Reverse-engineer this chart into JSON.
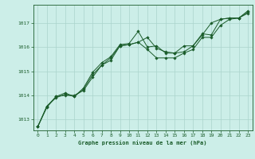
{
  "xlabel": "Graphe pression niveau de la mer (hPa)",
  "bg_color": "#cceee8",
  "line_color": "#1a5c2a",
  "grid_color": "#aad4cc",
  "xlim": [
    -0.5,
    23.5
  ],
  "ylim": [
    1012.55,
    1017.75
  ],
  "yticks": [
    1013,
    1014,
    1015,
    1016,
    1017
  ],
  "xticks": [
    0,
    1,
    2,
    3,
    4,
    5,
    6,
    7,
    8,
    9,
    10,
    11,
    12,
    13,
    14,
    15,
    16,
    17,
    18,
    19,
    20,
    21,
    22,
    23
  ],
  "series": [
    [
      1012.7,
      1013.55,
      1013.95,
      1014.0,
      1014.0,
      1014.2,
      1014.75,
      1015.25,
      1015.45,
      1016.05,
      1016.1,
      1016.2,
      1016.4,
      1015.95,
      1015.8,
      1015.75,
      1016.05,
      1016.05,
      1016.5,
      1017.0,
      1017.15,
      1017.2,
      1017.2,
      1017.45
    ],
    [
      1012.7,
      1013.55,
      1013.9,
      1014.05,
      1013.95,
      1014.3,
      1014.95,
      1015.35,
      1015.6,
      1016.1,
      1016.15,
      1016.65,
      1016.0,
      1016.05,
      1015.75,
      1015.75,
      1015.8,
      1016.05,
      1016.55,
      1016.5,
      1017.15,
      1017.2,
      1017.2,
      1017.5
    ],
    [
      1012.7,
      1013.5,
      1013.95,
      1014.1,
      1013.95,
      1014.25,
      1014.85,
      1015.25,
      1015.55,
      1016.05,
      1016.1,
      1016.2,
      1015.9,
      1015.55,
      1015.55,
      1015.55,
      1015.75,
      1015.9,
      1016.4,
      1016.4,
      1016.9,
      1017.15,
      1017.2,
      1017.4
    ]
  ]
}
